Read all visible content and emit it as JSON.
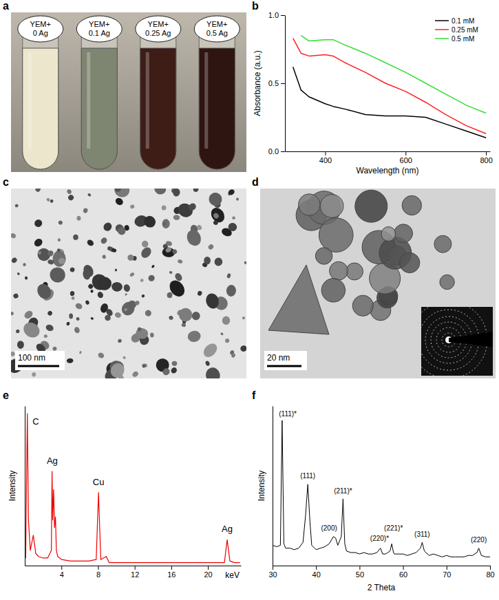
{
  "photo": {
    "panel_label": "a",
    "vials": [
      {
        "label": [
          "YEM+",
          "0 Ag"
        ],
        "color": "#ebe6cc"
      },
      {
        "label": [
          "YEM+",
          "0.1 Ag"
        ],
        "color": "#7e8571"
      },
      {
        "label": [
          "YEM+",
          "0.25 Ag"
        ],
        "color": "#3f1d17"
      },
      {
        "label": [
          "YEM+",
          "0.5 Ag"
        ],
        "color": "#2f1512"
      }
    ]
  },
  "chart_data": [
    {
      "type": "line",
      "panel_label": "b",
      "x_label": "Wavelength (nm)",
      "y_label": "Absorbance (a.u.)",
      "x": [
        320,
        340,
        360,
        400,
        420,
        450,
        500,
        550,
        600,
        650,
        700,
        750,
        800
      ],
      "series": [
        {
          "name": "0.1 mM",
          "color": "#000000",
          "values": [
            0.62,
            0.45,
            0.4,
            0.35,
            0.33,
            0.31,
            0.27,
            0.26,
            0.26,
            0.25,
            0.2,
            0.15,
            0.1
          ]
        },
        {
          "name": "0.25 mM",
          "color": "#ff2020",
          "values": [
            0.83,
            0.72,
            0.7,
            0.71,
            0.7,
            0.65,
            0.58,
            0.5,
            0.44,
            0.36,
            0.27,
            0.19,
            0.13
          ]
        },
        {
          "name": "0.5 mM",
          "color": "#33dd33",
          "values": [
            null,
            0.85,
            0.81,
            0.82,
            0.82,
            0.78,
            0.72,
            0.65,
            0.58,
            0.5,
            0.42,
            0.34,
            0.28
          ]
        }
      ],
      "xlim": [
        300,
        810
      ],
      "xticks": [
        400,
        600,
        800
      ],
      "ylim": [
        0,
        1.0
      ],
      "yticks": [
        {
          "value": 0,
          "label": "0.0"
        },
        {
          "value": 0.5,
          "label": "0.5"
        },
        {
          "value": 1.0,
          "label": "1.0"
        }
      ],
      "legend": "top-right"
    },
    {
      "type": "line",
      "panel_label": "e",
      "x_label": "keV",
      "y_label": "Intensity",
      "color": "#ee0000",
      "x": [
        0.1,
        0.2,
        0.28,
        0.4,
        0.6,
        0.93,
        1.2,
        1.5,
        2.0,
        2.5,
        2.9,
        2.98,
        3.05,
        3.15,
        3.25,
        3.35,
        3.45,
        3.6,
        4.0,
        5,
        6,
        7,
        7.8,
        8.05,
        8.3,
        8.9,
        9.2,
        10,
        12,
        14,
        16,
        18,
        20,
        21.8,
        22.1,
        22.4,
        22.9,
        23.5
      ],
      "values": [
        0.05,
        0.6,
        1.0,
        0.3,
        0.1,
        0.2,
        0.08,
        0.06,
        0.05,
        0.05,
        0.1,
        0.62,
        0.3,
        0.5,
        0.25,
        0.32,
        0.1,
        0.06,
        0.04,
        0.03,
        0.03,
        0.03,
        0.04,
        0.48,
        0.04,
        0.06,
        0.02,
        0.02,
        0.02,
        0.02,
        0.02,
        0.02,
        0.02,
        0.02,
        0.17,
        0.03,
        0.02,
        0.02
      ],
      "xlim": [
        0,
        23.6
      ],
      "xticks": [
        4,
        8,
        12,
        16,
        20
      ],
      "ylim": [
        0,
        1.05
      ],
      "tick_labels": "x",
      "annotations": [
        {
          "text": "C",
          "x": 1.2,
          "y": 0.93
        },
        {
          "text": "Ag",
          "x": 3.0,
          "y": 0.67
        },
        {
          "text": "Cu",
          "x": 8.05,
          "y": 0.53
        },
        {
          "text": "Ag",
          "x": 22.1,
          "y": 0.22
        }
      ]
    },
    {
      "type": "line",
      "panel_label": "f",
      "x_label": "2 Theta",
      "y_label": "Intensity",
      "color": "#000000",
      "x": [
        30,
        31,
        31.8,
        32.2,
        32.6,
        33,
        34,
        35,
        36,
        37,
        37.6,
        38.1,
        38.6,
        39,
        40,
        41,
        42,
        43,
        44,
        44.5,
        45,
        45.8,
        46.2,
        46.6,
        47,
        48,
        49,
        50,
        51,
        52,
        53,
        54,
        54.8,
        55.3,
        56,
        57,
        57.4,
        57.8,
        58,
        59,
        60,
        61,
        62,
        63,
        64,
        64.4,
        64.9,
        66,
        67,
        68,
        69,
        70,
        71,
        72,
        73,
        74,
        75,
        76,
        77,
        77.4,
        78,
        79,
        80
      ],
      "values": [
        0.14,
        0.13,
        0.14,
        1.0,
        0.15,
        0.12,
        0.12,
        0.11,
        0.12,
        0.16,
        0.35,
        0.56,
        0.3,
        0.14,
        0.11,
        0.12,
        0.13,
        0.15,
        0.2,
        0.19,
        0.14,
        0.2,
        0.46,
        0.15,
        0.1,
        0.09,
        0.09,
        0.08,
        0.09,
        0.08,
        0.08,
        0.09,
        0.12,
        0.08,
        0.08,
        0.1,
        0.15,
        0.09,
        0.08,
        0.08,
        0.08,
        0.07,
        0.08,
        0.09,
        0.12,
        0.16,
        0.1,
        0.07,
        0.08,
        0.07,
        0.06,
        0.07,
        0.06,
        0.06,
        0.06,
        0.06,
        0.07,
        0.07,
        0.09,
        0.12,
        0.07,
        0.06,
        0.06
      ],
      "xlim": [
        30,
        80
      ],
      "xticks": [
        30,
        40,
        50,
        60,
        70,
        80
      ],
      "ylim": [
        0,
        1.1
      ],
      "tick_labels": "x",
      "annotations": [
        {
          "text": "(111)*",
          "x": 33.5,
          "y": 1.03
        },
        {
          "text": "(111)",
          "x": 38.1,
          "y": 0.6
        },
        {
          "text": "(200)",
          "x": 43,
          "y": 0.24
        },
        {
          "text": "(211)*",
          "x": 46.2,
          "y": 0.5
        },
        {
          "text": "(220)*",
          "x": 54.6,
          "y": 0.17
        },
        {
          "text": "(221)*",
          "x": 57.8,
          "y": 0.24
        },
        {
          "text": "(311)",
          "x": 64.4,
          "y": 0.2
        },
        {
          "text": "(220)",
          "x": 77.4,
          "y": 0.16
        }
      ]
    }
  ],
  "micrographs": [
    {
      "panel_label": "c",
      "scale_bar": "100 nm"
    },
    {
      "panel_label": "d",
      "scale_bar": "20 nm"
    }
  ]
}
